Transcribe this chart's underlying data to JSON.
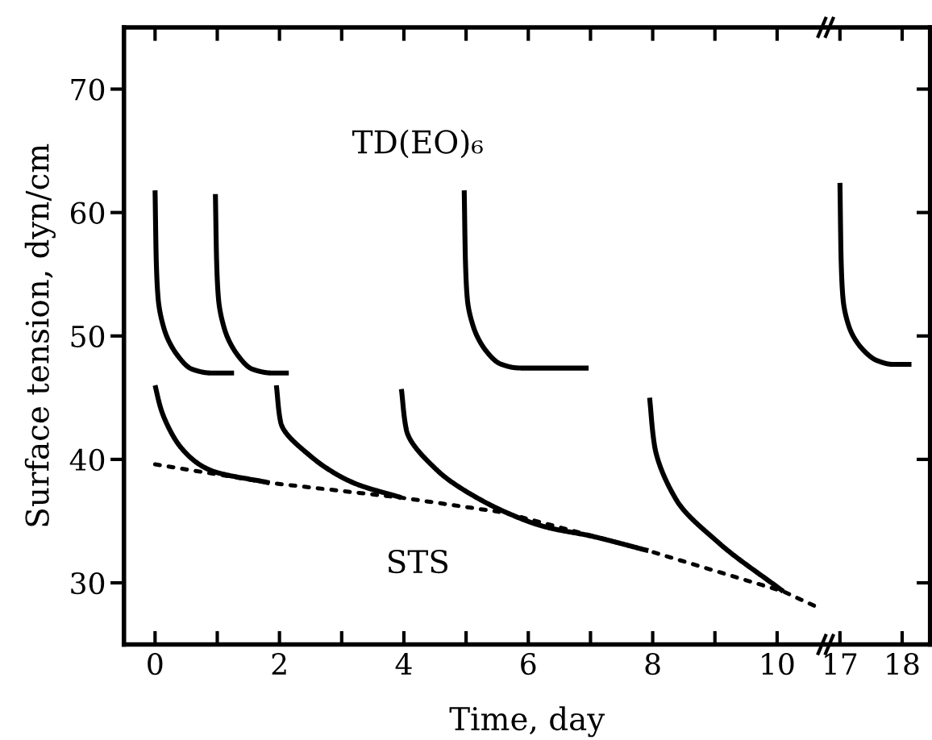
{
  "chart_data": [
    {
      "type": "line",
      "xlabel": "Time, day",
      "ylabel": "Surface tension, dyn/cm",
      "xlim": [
        -0.5,
        10.75
      ],
      "ylim": [
        25,
        75
      ],
      "xticks": [
        0,
        {
          "value": 1,
          "label": null
        },
        2,
        {
          "value": 3,
          "label": null
        },
        4,
        {
          "value": 5,
          "label": null
        },
        6,
        {
          "value": 7,
          "label": null
        },
        8,
        {
          "value": 9,
          "label": null
        },
        10
      ],
      "yticks": [
        30,
        40,
        50,
        60,
        70
      ],
      "grid": false,
      "legend": false,
      "marker": "none",
      "annotations": [
        "TD(EO)₆",
        "STS"
      ],
      "series": [
        {
          "color": "#000000",
          "line_style": "solid",
          "x": [
            0,
            0.02,
            0.05,
            0.15,
            0.35,
            0.6,
            0.9,
            1.27
          ],
          "values": [
            61.8,
            56,
            53,
            50.5,
            48.5,
            47.3,
            47.0,
            47.0
          ]
        },
        {
          "color": "#000000",
          "line_style": "solid",
          "x": [
            0.97,
            0.99,
            1.02,
            1.12,
            1.32,
            1.57,
            1.87,
            2.15
          ],
          "values": [
            61.5,
            56,
            53,
            50.5,
            48.5,
            47.3,
            47.0,
            47.0
          ]
        },
        {
          "color": "#000000",
          "line_style": "solid",
          "x": [
            4.97,
            4.99,
            5.02,
            5.12,
            5.32,
            5.57,
            5.9,
            6.97
          ],
          "values": [
            61.8,
            56,
            53,
            50.7,
            48.8,
            47.7,
            47.4,
            47.4
          ]
        },
        {
          "color": "#000000",
          "line_style": "solid",
          "x": [
            0,
            0.1,
            0.41,
            0.9,
            1.84
          ],
          "values": [
            46.0,
            44.0,
            41.0,
            39.1,
            38.1
          ]
        },
        {
          "color": "#000000",
          "line_style": "solid",
          "x": [
            1.95,
            2.02,
            2.49,
            3.19,
            3.96
          ],
          "values": [
            46.0,
            43.0,
            40.3,
            38.1,
            36.9
          ]
        },
        {
          "color": "#000000",
          "line_style": "solid",
          "x": [
            3.96,
            4.04,
            4.56,
            5.6,
            6.3,
            7.0,
            7.93
          ],
          "values": [
            45.7,
            42.4,
            39.0,
            35.8,
            34.5,
            33.8,
            32.6
          ]
        },
        {
          "color": "#000000",
          "line_style": "solid",
          "x": [
            7.95,
            8.03,
            8.37,
            9.07,
            10.1
          ],
          "values": [
            45.0,
            41.1,
            36.8,
            33.2,
            29.3
          ]
        },
        {
          "color": "#000000",
          "line_style": "dotted",
          "x": [
            0,
            1.84,
            3.96,
            5.6,
            7.93,
            10.1,
            10.7
          ],
          "values": [
            39.6,
            38.1,
            36.9,
            35.7,
            32.6,
            29.3,
            27.9
          ]
        }
      ]
    },
    {
      "type": "line",
      "xlim": [
        16.8,
        18.45
      ],
      "ylim": [
        25,
        75
      ],
      "xticks": [
        17,
        18
      ],
      "yticks": [
        {
          "value": 30,
          "label": null
        },
        {
          "value": 40,
          "label": null
        },
        {
          "value": 50,
          "label": null
        },
        {
          "value": 60,
          "label": null
        },
        {
          "value": 70,
          "label": null
        }
      ],
      "tick_labels": "x",
      "grid": false,
      "legend": false,
      "marker": "none",
      "series": [
        {
          "color": "#000000",
          "line_style": "solid",
          "x": [
            17.0,
            17.02,
            17.05,
            17.15,
            17.35,
            17.6,
            17.85,
            18.15
          ],
          "values": [
            62.4,
            56,
            53,
            50.7,
            49.0,
            48.0,
            47.7,
            47.7
          ]
        }
      ]
    }
  ]
}
